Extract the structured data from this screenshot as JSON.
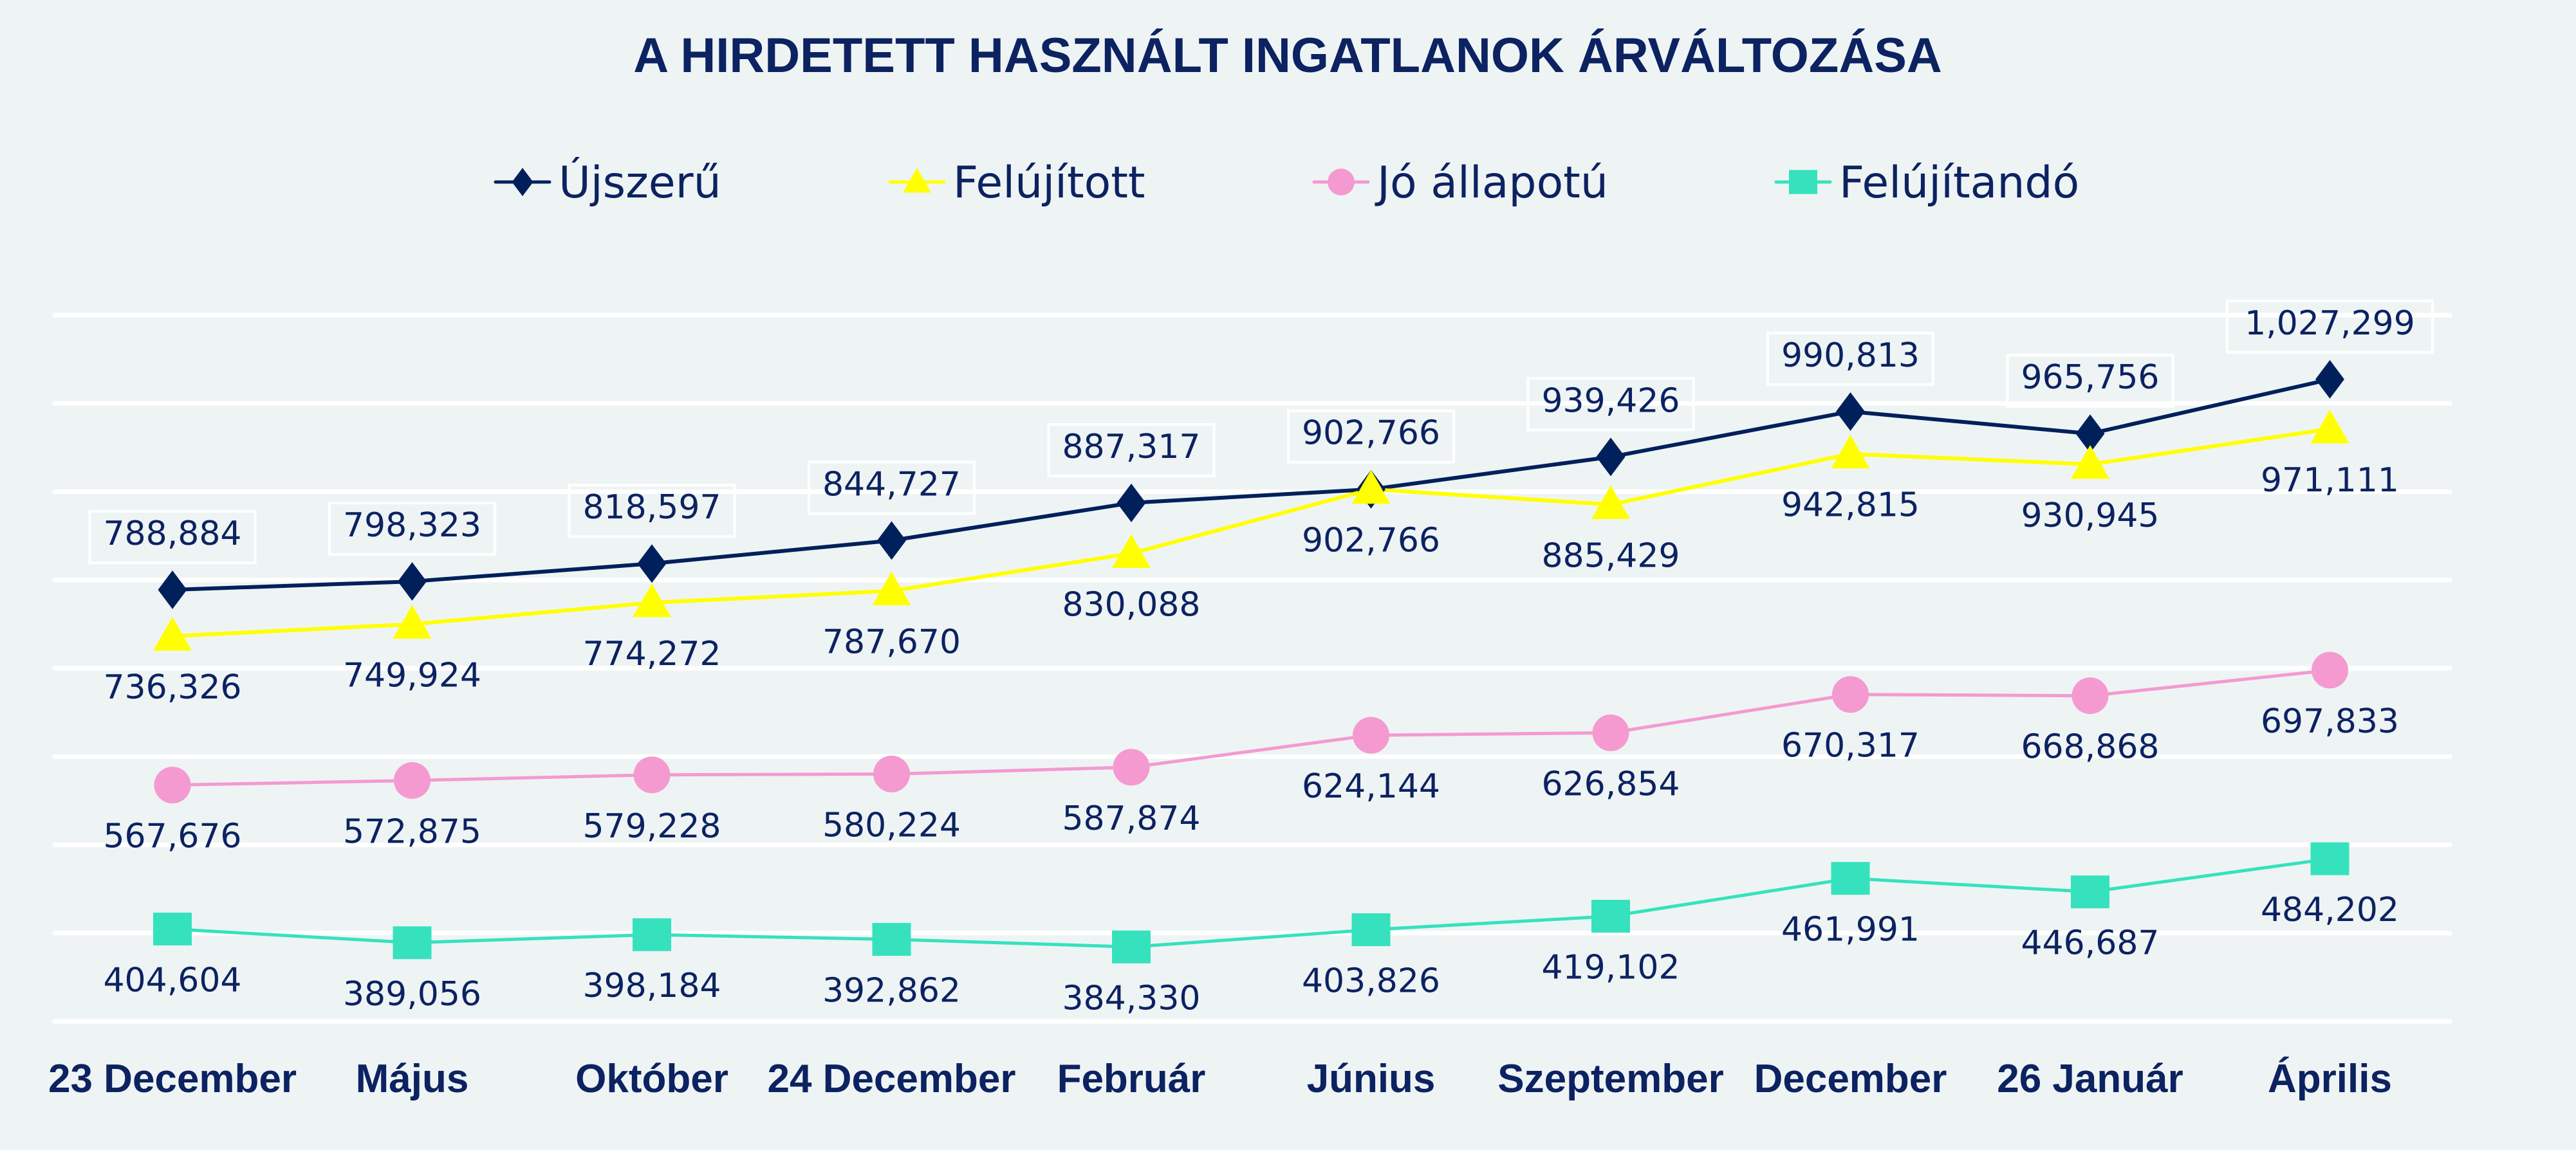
{
  "chart_data": {
    "type": "line",
    "title": "A HIRDETETT HASZNÁLT INGATLANOK ÁRVÁLTOZÁSA",
    "xlabel": "",
    "ylabel": "",
    "ylim": [
      300000,
      1100000
    ],
    "y_grid_step": 100000,
    "grid": true,
    "y_axis_labels_visible": false,
    "legend_position": "top",
    "categories": [
      "23 December",
      "Május",
      "Október",
      "24 December",
      "Február",
      "Június",
      "Szeptember",
      "December",
      "26 Január",
      "Április"
    ],
    "series": [
      {
        "name": "Újszerű",
        "marker": "diamond",
        "color": "#00205b",
        "label_position": "above",
        "label_boxed": true,
        "values": [
          788884,
          798323,
          818597,
          844727,
          887317,
          902766,
          939426,
          990813,
          965756,
          1027299
        ],
        "labels": [
          "788,884",
          "798,323",
          "818,597",
          "844,727",
          "887,317",
          "902,766",
          "939,426",
          "990,813",
          "965,756",
          "1,027,299"
        ]
      },
      {
        "name": "Felújított",
        "marker": "triangle",
        "color": "#ffff00",
        "label_position": "below",
        "label_boxed": false,
        "values": [
          736326,
          749924,
          774272,
          787670,
          830088,
          902766,
          885429,
          942815,
          930945,
          971111
        ],
        "labels": [
          "736,326",
          "749,924",
          "774,272",
          "787,670",
          "830,088",
          "902,766",
          "885,429",
          "942,815",
          "930,945",
          "971,111"
        ]
      },
      {
        "name": "Jó állapotú",
        "marker": "circle",
        "color": "#f49ad1",
        "label_position": "below",
        "label_boxed": false,
        "values": [
          567676,
          572875,
          579228,
          580224,
          587874,
          624144,
          626854,
          670317,
          668868,
          697833
        ],
        "labels": [
          "567,676",
          "572,875",
          "579,228",
          "580,224",
          "587,874",
          "624,144",
          "626,854",
          "670,317",
          "668,868",
          "697,833"
        ]
      },
      {
        "name": "Felújítandó",
        "marker": "square",
        "color": "#36e2bd",
        "label_position": "below",
        "label_boxed": false,
        "values": [
          404604,
          389056,
          398184,
          392862,
          384330,
          403826,
          419102,
          461991,
          446687,
          484202
        ],
        "labels": [
          "404,604",
          "389,056",
          "398,184",
          "392,862",
          "384,330",
          "403,826",
          "419,102",
          "461,991",
          "446,687",
          "484,202"
        ]
      }
    ]
  },
  "colors": {
    "background": "#eef4f4",
    "text": "#0c2261",
    "grid": "#ffffff"
  }
}
